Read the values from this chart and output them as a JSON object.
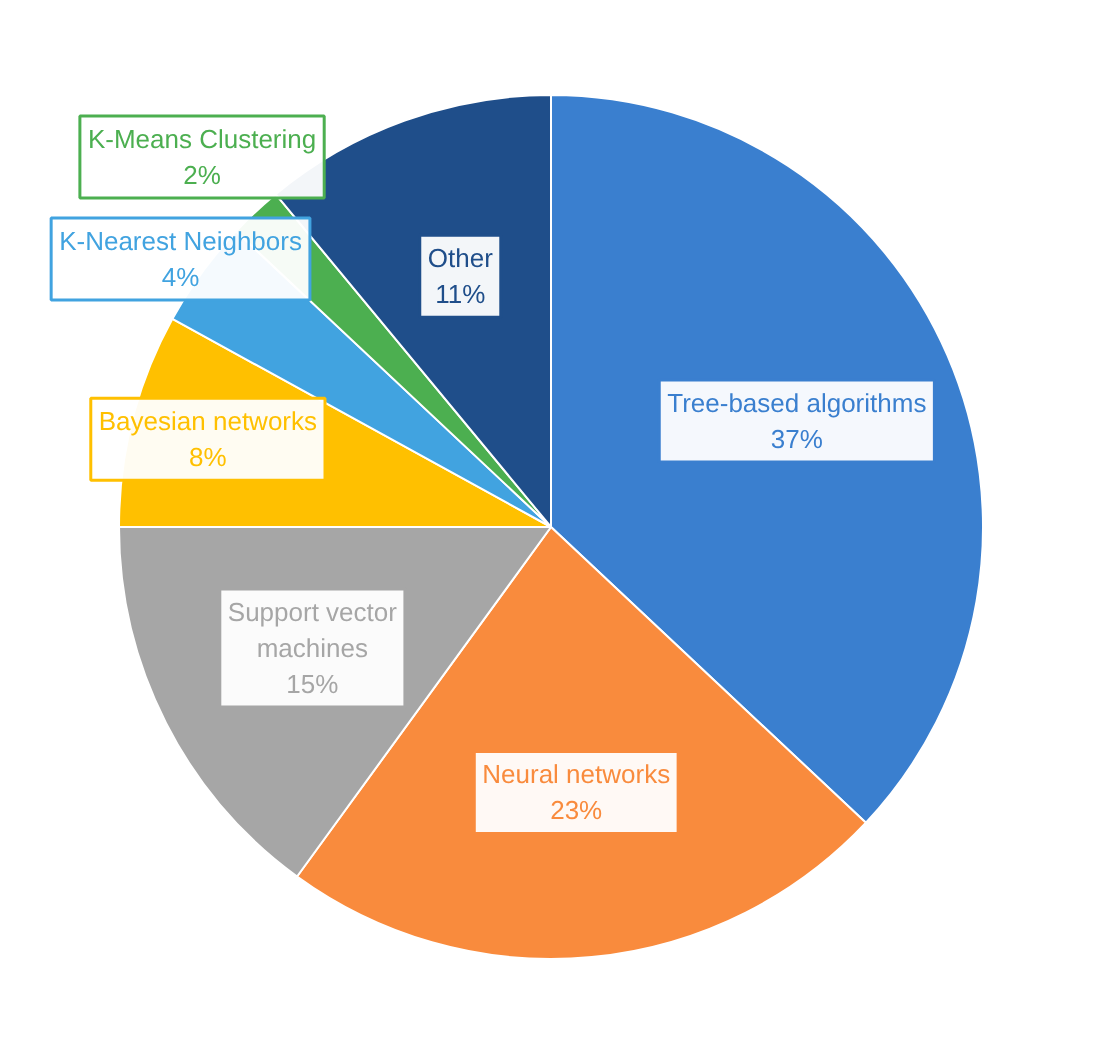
{
  "chart_data": {
    "type": "pie",
    "categories": [
      "Tree-based algorithms",
      "Neural networks",
      "Support vector machines",
      "Bayesian networks",
      "K-Nearest Neighbors",
      "K-Means Clustering",
      "Other"
    ],
    "values": [
      37,
      23,
      15,
      8,
      4,
      2,
      11
    ],
    "colors": [
      "#3a7fcf",
      "#f98b3d",
      "#a6a6a6",
      "#ffc000",
      "#41a3e0",
      "#4caf50",
      "#1f4e8a"
    ],
    "value_labels": [
      "37%",
      "23%",
      "15%",
      "8%",
      "4%",
      "2%",
      "11%"
    ]
  }
}
